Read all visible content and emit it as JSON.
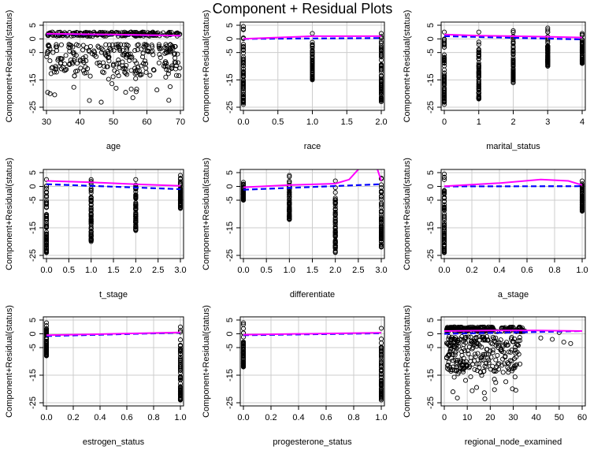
{
  "title": "Component + Residual Plots",
  "ylabel": "Component+Residual(status)",
  "colors": {
    "points": "#000000",
    "smooth": "#ff00ff",
    "fit": "#0000ff",
    "grid": "#cccccc",
    "frame": "#000000"
  },
  "chart_data": [
    {
      "type": "scatter",
      "xlabel": "age",
      "xlim": [
        30,
        70
      ],
      "xticks": [
        30,
        40,
        50,
        60,
        70
      ],
      "xticklabels": [
        "30",
        "40",
        "50",
        "60",
        "70"
      ],
      "ylim": [
        -25,
        5
      ],
      "yticks": [
        5,
        0,
        -5,
        -15,
        -25
      ],
      "yticklabels": [
        "5",
        "0",
        "-5",
        "-15",
        "-25"
      ],
      "fit": [
        [
          30,
          1.8
        ],
        [
          70,
          1.2
        ]
      ],
      "smooth": [
        [
          30,
          1.9
        ],
        [
          50,
          1.6
        ],
        [
          70,
          1.2
        ]
      ],
      "cluster": {
        "kind": "continuous",
        "band": [
          1.0,
          2.5
        ],
        "spread": [
          -14,
          -2
        ],
        "tail_min": -24
      }
    },
    {
      "type": "scatter",
      "xlabel": "race",
      "xlim": [
        0,
        2
      ],
      "xticks": [
        0,
        0.5,
        1,
        1.5,
        2
      ],
      "xticklabels": [
        "0.0",
        "0.5",
        "1.0",
        "1.5",
        "2.0"
      ],
      "ylim": [
        -25,
        5
      ],
      "yticks": [
        5,
        0,
        -5,
        -15,
        -25
      ],
      "yticklabels": [
        "5",
        "0",
        "-5",
        "-15",
        "-25"
      ],
      "fit": [
        [
          0,
          0
        ],
        [
          2,
          0.3
        ]
      ],
      "smooth": [
        [
          0,
          0
        ],
        [
          1,
          1.0
        ],
        [
          2,
          1.0
        ]
      ],
      "cluster": {
        "kind": "discrete",
        "x": [
          0,
          1,
          2
        ],
        "ranges": [
          [
            -24,
            4.5
          ],
          [
            -15,
            2
          ],
          [
            -23,
            2
          ]
        ]
      }
    },
    {
      "type": "scatter",
      "xlabel": "marital_status",
      "xlim": [
        0,
        4
      ],
      "xticks": [
        0,
        1,
        2,
        3,
        4
      ],
      "xticklabels": [
        "0",
        "1",
        "2",
        "3",
        "4"
      ],
      "ylim": [
        -25,
        5
      ],
      "yticks": [
        5,
        0,
        -5,
        -15,
        -25
      ],
      "yticklabels": [
        "5",
        "0",
        "-5",
        "-15",
        "-25"
      ],
      "fit": [
        [
          0,
          1.0
        ],
        [
          4,
          -0.2
        ]
      ],
      "smooth": [
        [
          0,
          1.6
        ],
        [
          1,
          1.2
        ],
        [
          2,
          1.0
        ],
        [
          3,
          0.8
        ],
        [
          4,
          0.5
        ]
      ],
      "cluster": {
        "kind": "discrete",
        "x": [
          0,
          1,
          2,
          3,
          4
        ],
        "ranges": [
          [
            -24,
            2.5
          ],
          [
            -22,
            2.5
          ],
          [
            -16,
            3
          ],
          [
            -10,
            4
          ],
          [
            -9,
            2
          ]
        ]
      }
    },
    {
      "type": "scatter",
      "xlabel": "t_stage",
      "xlim": [
        0,
        3
      ],
      "xticks": [
        0,
        0.5,
        1,
        1.5,
        2,
        2.5,
        3
      ],
      "xticklabels": [
        "0.0",
        "0.5",
        "1.0",
        "1.5",
        "2.0",
        "2.5",
        "3.0"
      ],
      "ylim": [
        -25,
        5
      ],
      "yticks": [
        5,
        0,
        -5,
        -15,
        -25
      ],
      "yticklabels": [
        "5",
        "0",
        "-5",
        "-15",
        "-25"
      ],
      "fit": [
        [
          0,
          0.8
        ],
        [
          3,
          -1.0
        ]
      ],
      "smooth": [
        [
          0,
          2.0
        ],
        [
          1,
          1.5
        ],
        [
          2,
          0.8
        ],
        [
          3,
          0.2
        ]
      ],
      "cluster": {
        "kind": "discrete",
        "x": [
          0,
          1,
          2,
          3
        ],
        "ranges": [
          [
            -24,
            2.5
          ],
          [
            -20,
            2.5
          ],
          [
            -16,
            2.5
          ],
          [
            -8,
            4
          ]
        ]
      }
    },
    {
      "type": "scatter",
      "xlabel": "differentiate",
      "xlim": [
        0,
        3
      ],
      "xticks": [
        0,
        0.5,
        1,
        1.5,
        2,
        2.5,
        3
      ],
      "xticklabels": [
        "0.0",
        "0.5",
        "1.0",
        "1.5",
        "2.0",
        "2.5",
        "3.0"
      ],
      "ylim": [
        -25,
        5
      ],
      "yticks": [
        5,
        0,
        -5,
        -15,
        -25
      ],
      "yticklabels": [
        "5",
        "0",
        "-5",
        "-15",
        "-25"
      ],
      "fit": [
        [
          0,
          -1.2
        ],
        [
          3,
          0.8
        ]
      ],
      "smooth": [
        [
          0,
          -0.3
        ],
        [
          1,
          0.5
        ],
        [
          2,
          1.0
        ],
        [
          2.3,
          2.5
        ],
        [
          2.6,
          8
        ],
        [
          2.9,
          7
        ],
        [
          3,
          2
        ]
      ],
      "cluster": {
        "kind": "discrete",
        "x": [
          0,
          1,
          2,
          3
        ],
        "ranges": [
          [
            -5,
            1.5
          ],
          [
            -12,
            4
          ],
          [
            -24,
            2
          ],
          [
            -22,
            3
          ]
        ]
      }
    },
    {
      "type": "scatter",
      "xlabel": "a_stage",
      "xlim": [
        0,
        1
      ],
      "xticks": [
        0,
        0.2,
        0.4,
        0.6,
        0.8,
        1
      ],
      "xticklabels": [
        "0.0",
        "0.2",
        "0.4",
        "0.6",
        "0.8",
        "1.0"
      ],
      "ylim": [
        -25,
        5
      ],
      "yticks": [
        5,
        0,
        -5,
        -15,
        -25
      ],
      "yticklabels": [
        "5",
        "0",
        "-5",
        "-15",
        "-25"
      ],
      "fit": [
        [
          0,
          0
        ],
        [
          1,
          0.1
        ]
      ],
      "smooth": [
        [
          0,
          0.1
        ],
        [
          0.4,
          1.2
        ],
        [
          0.7,
          2.5
        ],
        [
          0.9,
          2.0
        ],
        [
          1,
          0.5
        ]
      ],
      "cluster": {
        "kind": "discrete",
        "x": [
          0,
          1
        ],
        "ranges": [
          [
            -24,
            4.5
          ],
          [
            -9,
            2
          ]
        ]
      }
    },
    {
      "type": "scatter",
      "xlabel": "estrogen_status",
      "xlim": [
        0,
        1
      ],
      "xticks": [
        0,
        0.2,
        0.4,
        0.6,
        0.8,
        1
      ],
      "xticklabels": [
        "0.0",
        "0.2",
        "0.4",
        "0.6",
        "0.8",
        "1.0"
      ],
      "ylim": [
        -25,
        5
      ],
      "yticks": [
        5,
        0,
        -5,
        -15,
        -25
      ],
      "yticklabels": [
        "5",
        "0",
        "-5",
        "-15",
        "-25"
      ],
      "fit": [
        [
          0,
          -0.8
        ],
        [
          1,
          0.4
        ]
      ],
      "smooth": [
        [
          0,
          -0.5
        ],
        [
          1,
          0.5
        ]
      ],
      "cluster": {
        "kind": "discrete",
        "x": [
          0,
          1
        ],
        "ranges": [
          [
            -8,
            4
          ],
          [
            -24,
            2.5
          ]
        ]
      }
    },
    {
      "type": "scatter",
      "xlabel": "progesterone_status",
      "xlim": [
        0,
        1
      ],
      "xticks": [
        0,
        0.2,
        0.4,
        0.6,
        0.8,
        1
      ],
      "xticklabels": [
        "0.0",
        "0.2",
        "0.4",
        "0.6",
        "0.8",
        "1.0"
      ],
      "ylim": [
        -25,
        5
      ],
      "yticks": [
        5,
        0,
        -5,
        -15,
        -25
      ],
      "yticklabels": [
        "5",
        "0",
        "-5",
        "-15",
        "-25"
      ],
      "fit": [
        [
          0,
          -0.5
        ],
        [
          1,
          0.2
        ]
      ],
      "smooth": [
        [
          0,
          -0.3
        ],
        [
          1,
          0.4
        ]
      ],
      "cluster": {
        "kind": "discrete",
        "x": [
          0,
          1
        ],
        "ranges": [
          [
            -12,
            4
          ],
          [
            -24,
            2
          ]
        ]
      }
    },
    {
      "type": "scatter",
      "xlabel": "regional_node_examined",
      "xlim": [
        0,
        60
      ],
      "xticks": [
        0,
        10,
        20,
        30,
        40,
        50,
        60
      ],
      "xticklabels": [
        "0",
        "10",
        "20",
        "30",
        "40",
        "50",
        "60"
      ],
      "ylim": [
        -25,
        5
      ],
      "yticks": [
        5,
        0,
        -5,
        -15,
        -25
      ],
      "yticklabels": [
        "5",
        "0",
        "-5",
        "-15",
        "-25"
      ],
      "fit": [
        [
          0,
          0
        ],
        [
          60,
          1.0
        ]
      ],
      "smooth": [
        [
          0,
          1.0
        ],
        [
          20,
          1.2
        ],
        [
          40,
          1.2
        ],
        [
          60,
          1.0
        ]
      ],
      "cluster": {
        "kind": "continuous_skew",
        "band": [
          0.8,
          2.5
        ],
        "spread": [
          -14,
          -1
        ],
        "tail_min": -24,
        "tail_max_x": 60
      }
    }
  ]
}
